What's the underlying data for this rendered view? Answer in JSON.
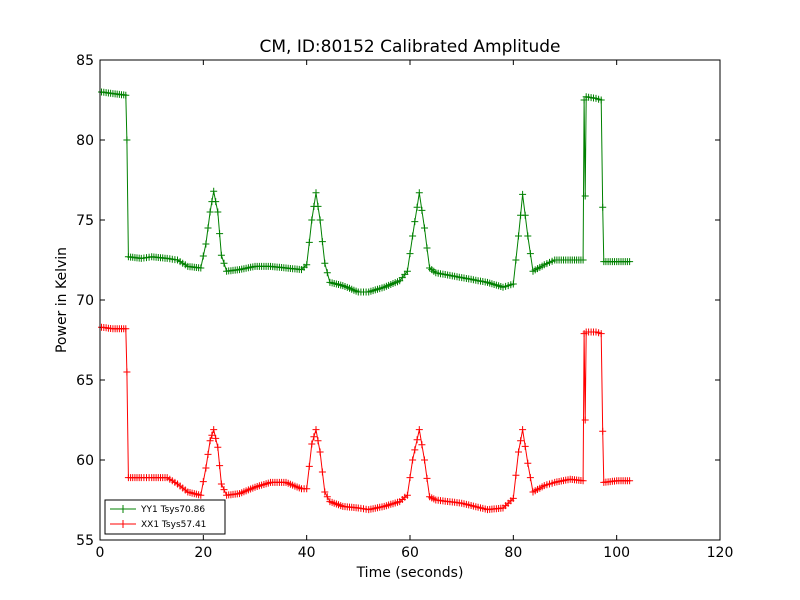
{
  "chart_data": {
    "type": "line",
    "title": "CM, ID:80152 Calibrated Amplitude",
    "xlabel": "Time (seconds)",
    "ylabel": "Power in Kelvin",
    "xlim": [
      0,
      120
    ],
    "ylim": [
      55,
      85
    ],
    "xticks": [
      0,
      20,
      40,
      60,
      80,
      100,
      120
    ],
    "yticks": [
      55,
      60,
      65,
      70,
      75,
      80,
      85
    ],
    "grid": false,
    "legend_position": "lower-left",
    "marker": "plus",
    "series": [
      {
        "name": "YY1 Tsys70.86",
        "color": "#008000",
        "points": [
          [
            0.3,
            83.0
          ],
          [
            2.5,
            82.9
          ],
          [
            5.0,
            82.8
          ],
          [
            5.2,
            80.0
          ],
          [
            5.5,
            72.7
          ],
          [
            8.0,
            72.6
          ],
          [
            10.0,
            72.7
          ],
          [
            13.0,
            72.6
          ],
          [
            15.0,
            72.5
          ],
          [
            17.0,
            72.1
          ],
          [
            19.5,
            72.0
          ],
          [
            20.5,
            73.5
          ],
          [
            21.3,
            75.5
          ],
          [
            22.0,
            76.8
          ],
          [
            22.8,
            75.5
          ],
          [
            23.5,
            72.8
          ],
          [
            24.5,
            71.8
          ],
          [
            27.0,
            71.9
          ],
          [
            30.0,
            72.1
          ],
          [
            33.0,
            72.1
          ],
          [
            36.0,
            72.0
          ],
          [
            39.0,
            71.9
          ],
          [
            40.0,
            72.2
          ],
          [
            41.0,
            75.0
          ],
          [
            41.8,
            76.7
          ],
          [
            42.6,
            75.0
          ],
          [
            43.5,
            72.3
          ],
          [
            44.5,
            71.1
          ],
          [
            47.0,
            70.9
          ],
          [
            50.0,
            70.5
          ],
          [
            52.0,
            70.5
          ],
          [
            55.0,
            70.8
          ],
          [
            58.0,
            71.2
          ],
          [
            59.5,
            71.8
          ],
          [
            60.5,
            74.0
          ],
          [
            61.8,
            76.7
          ],
          [
            62.8,
            74.5
          ],
          [
            63.8,
            72.0
          ],
          [
            65.0,
            71.7
          ],
          [
            70.0,
            71.4
          ],
          [
            75.0,
            71.1
          ],
          [
            78.0,
            70.8
          ],
          [
            80.0,
            71.0
          ],
          [
            81.0,
            74.0
          ],
          [
            81.8,
            76.6
          ],
          [
            82.8,
            74.0
          ],
          [
            83.8,
            71.8
          ],
          [
            86.0,
            72.2
          ],
          [
            88.0,
            72.5
          ],
          [
            91.0,
            72.5
          ],
          [
            93.5,
            72.5
          ],
          [
            93.7,
            82.5
          ],
          [
            93.9,
            76.5
          ],
          [
            94.1,
            82.7
          ],
          [
            96.0,
            82.6
          ],
          [
            97.0,
            82.5
          ],
          [
            97.3,
            75.8
          ],
          [
            97.5,
            72.4
          ],
          [
            100.0,
            72.4
          ],
          [
            102.5,
            72.4
          ]
        ]
      },
      {
        "name": "XX1 Tsys57.41",
        "color": "#ff0000",
        "points": [
          [
            0.3,
            68.3
          ],
          [
            2.5,
            68.2
          ],
          [
            5.0,
            68.2
          ],
          [
            5.2,
            65.5
          ],
          [
            5.5,
            58.9
          ],
          [
            8.0,
            58.9
          ],
          [
            10.0,
            58.9
          ],
          [
            13.0,
            58.9
          ],
          [
            15.0,
            58.5
          ],
          [
            17.0,
            58.0
          ],
          [
            19.5,
            57.8
          ],
          [
            20.5,
            59.5
          ],
          [
            21.3,
            61.2
          ],
          [
            22.0,
            61.9
          ],
          [
            22.8,
            60.8
          ],
          [
            23.5,
            58.5
          ],
          [
            24.5,
            57.8
          ],
          [
            27.0,
            57.9
          ],
          [
            30.0,
            58.3
          ],
          [
            33.0,
            58.6
          ],
          [
            36.0,
            58.6
          ],
          [
            39.0,
            58.2
          ],
          [
            40.0,
            58.2
          ],
          [
            41.0,
            61.0
          ],
          [
            41.8,
            61.9
          ],
          [
            42.6,
            60.5
          ],
          [
            43.5,
            58.0
          ],
          [
            44.5,
            57.4
          ],
          [
            47.0,
            57.1
          ],
          [
            50.0,
            57.0
          ],
          [
            52.0,
            56.9
          ],
          [
            55.0,
            57.1
          ],
          [
            58.0,
            57.4
          ],
          [
            59.5,
            57.8
          ],
          [
            60.5,
            60.0
          ],
          [
            61.8,
            61.9
          ],
          [
            62.8,
            60.0
          ],
          [
            63.8,
            57.7
          ],
          [
            65.0,
            57.5
          ],
          [
            70.0,
            57.3
          ],
          [
            75.0,
            56.9
          ],
          [
            78.0,
            57.0
          ],
          [
            80.0,
            57.6
          ],
          [
            81.0,
            60.5
          ],
          [
            81.8,
            61.9
          ],
          [
            82.8,
            59.8
          ],
          [
            83.8,
            58.0
          ],
          [
            86.0,
            58.4
          ],
          [
            88.0,
            58.6
          ],
          [
            91.0,
            58.8
          ],
          [
            93.5,
            58.7
          ],
          [
            93.7,
            67.9
          ],
          [
            93.9,
            62.5
          ],
          [
            94.1,
            68.0
          ],
          [
            96.0,
            68.0
          ],
          [
            97.0,
            67.9
          ],
          [
            97.3,
            61.8
          ],
          [
            97.5,
            58.6
          ],
          [
            100.0,
            58.7
          ],
          [
            102.5,
            58.7
          ]
        ]
      }
    ]
  }
}
